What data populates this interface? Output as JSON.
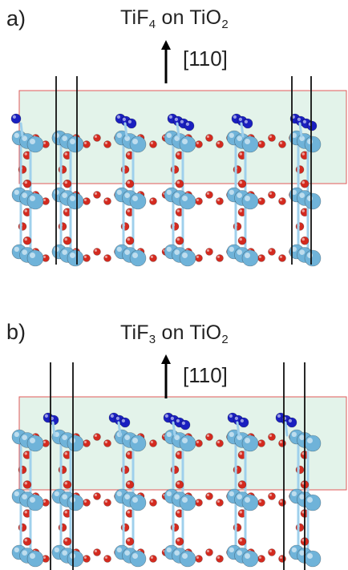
{
  "panels": [
    {
      "label": "a)",
      "title_main": "TiF",
      "title_sub": "4",
      "title_mid": " on TiO",
      "title_sub2": "2",
      "direction": "[110]"
    },
    {
      "label": "b)",
      "title_main": "TiF",
      "title_sub": "3",
      "title_mid": " on TiO",
      "title_sub2": "2",
      "direction": "[110]"
    }
  ],
  "colors": {
    "titanium": "#6fb3d9",
    "oxygen": "#d42a1f",
    "fluorine": "#1a1fc0",
    "bond": "#9fd0ec",
    "box_fill": "#e3f3ea",
    "box_border": "#e05a5a",
    "axis_line": "#111111"
  }
}
